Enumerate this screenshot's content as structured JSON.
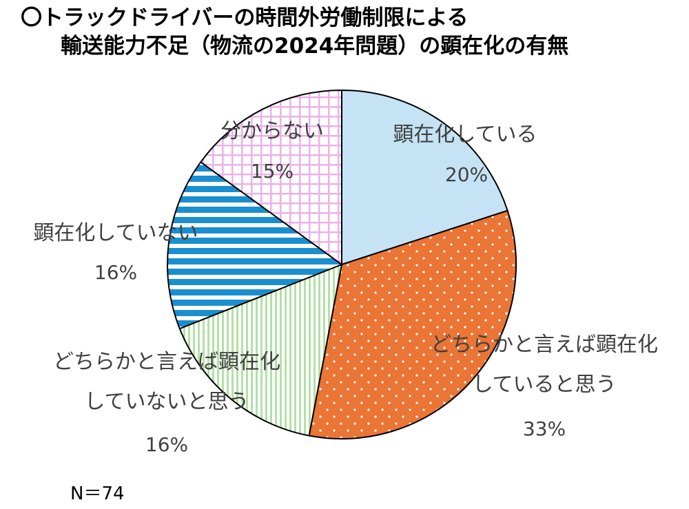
{
  "chart_data": {
    "type": "pie",
    "title_line1": "〇トラックドライバーの時間外労働制限による",
    "title_line2": "輸送能力不足（物流の2024年問題）の顕在化の有無",
    "slices": [
      {
        "label_lines": [
          "顕在化している"
        ],
        "value": 20,
        "pct_label": "20%",
        "color": "#c5e3f5",
        "pattern": "solid"
      },
      {
        "label_lines": [
          "どちらかと言えば顕在化",
          "していると思う"
        ],
        "value": 33,
        "pct_label": "33%",
        "color": "#ea7535",
        "pattern": "dots"
      },
      {
        "label_lines": [
          "どちらかと言えば顕在化",
          "していないと思う"
        ],
        "value": 16,
        "pct_label": "16%",
        "color": "#b3e0a6",
        "pattern": "vertical-stripes"
      },
      {
        "label_lines": [
          "顕在化していない"
        ],
        "value": 16,
        "pct_label": "16%",
        "color": "#1a8fd0",
        "pattern": "horizontal-stripes"
      },
      {
        "label_lines": [
          "分からない"
        ],
        "value": 15,
        "pct_label": "15%",
        "color": "#eab2e8",
        "pattern": "grid"
      }
    ],
    "start_angle": "12 o'clock",
    "direction": "clockwise",
    "legend": "none"
  },
  "note": "N＝74"
}
